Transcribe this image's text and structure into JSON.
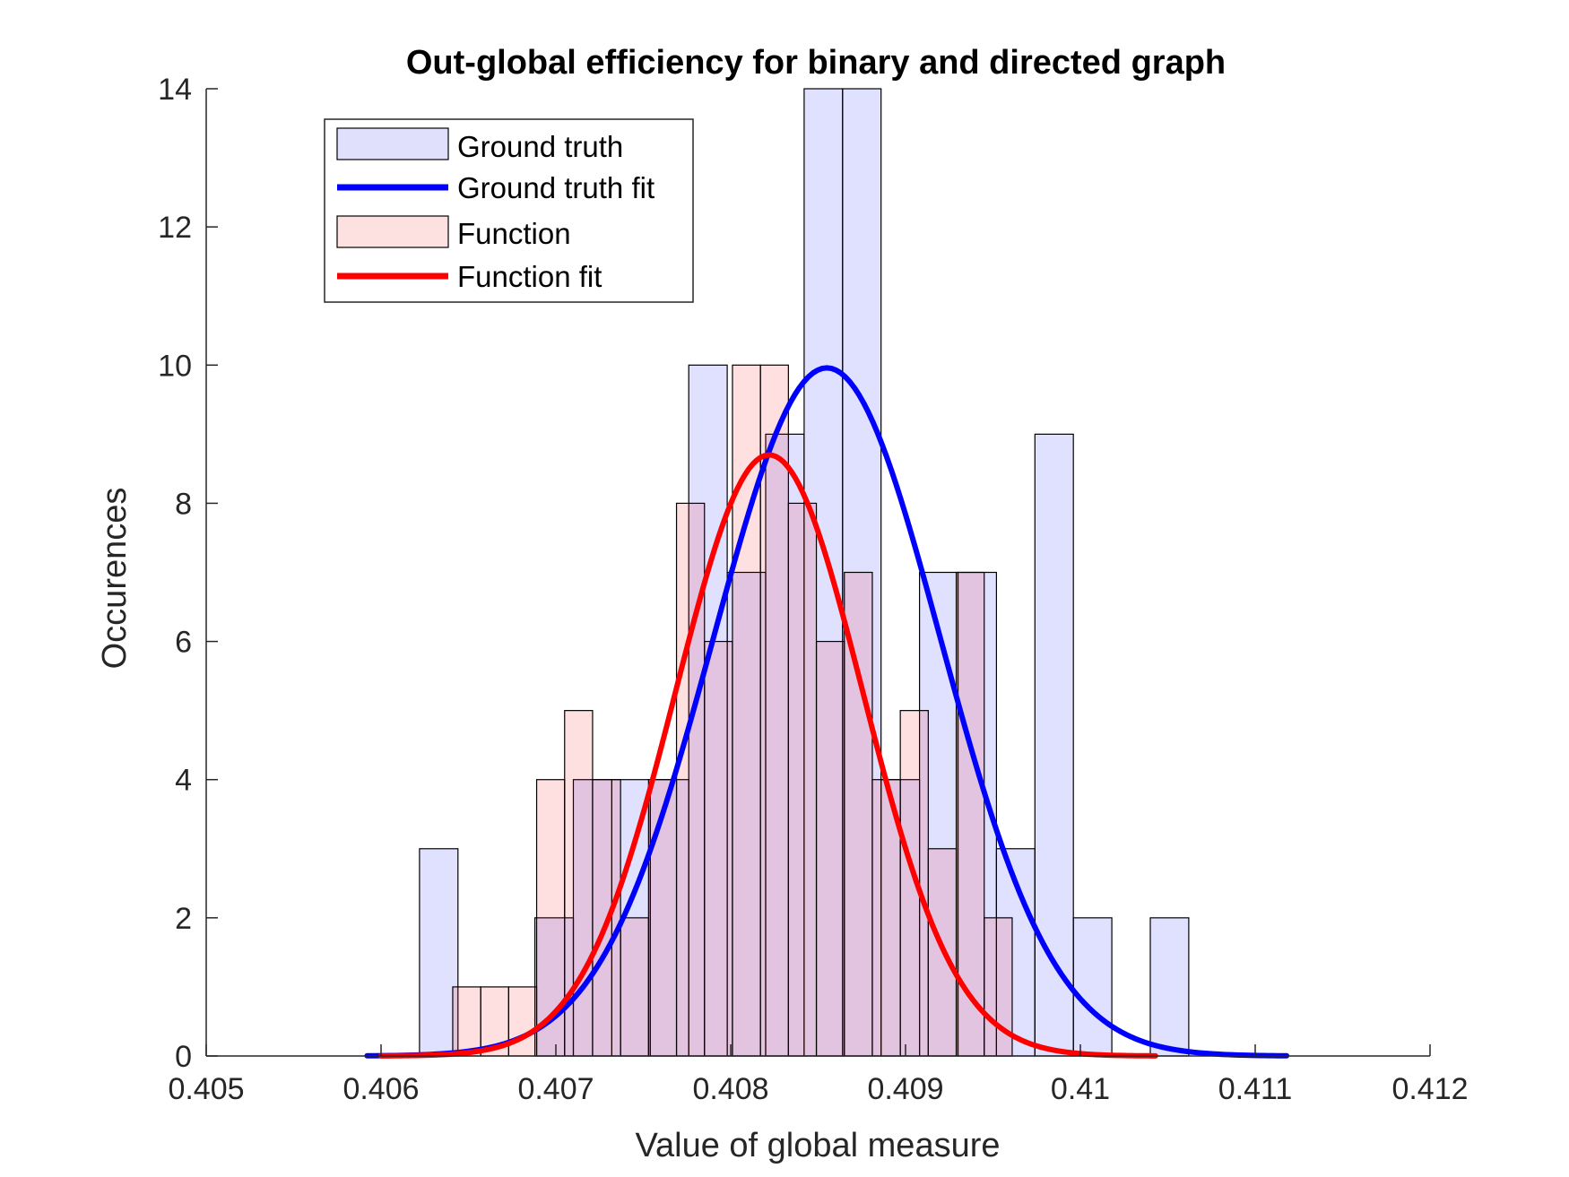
{
  "chart_data": {
    "type": "bar",
    "title": "Out-global efficiency for binary and directed graph",
    "xlabel": "Value of global measure",
    "ylabel": "Occurences",
    "xlim": [
      0.405,
      0.412
    ],
    "ylim": [
      0,
      14
    ],
    "xticks": [
      "0.405",
      "0.406",
      "0.407",
      "0.408",
      "0.409",
      "0.41",
      "0.411",
      "0.412"
    ],
    "yticks": [
      "0",
      "2",
      "4",
      "6",
      "8",
      "10",
      "12",
      "14"
    ],
    "grid": false,
    "legend_position": "top-left",
    "series": [
      {
        "name": "Ground truth",
        "kind": "histogram",
        "color": "#0000ff",
        "opacity": 0.12,
        "bin_width": 0.00022,
        "bin_starts": [
          0.40622,
          0.40644,
          0.40666,
          0.40688,
          0.4071,
          0.40732,
          0.40754,
          0.40776,
          0.40798,
          0.4082,
          0.40842,
          0.40864,
          0.40886,
          0.40908,
          0.4093,
          0.40952,
          0.40974,
          0.40996,
          0.41018,
          0.4104
        ],
        "counts": [
          3,
          0,
          0,
          2,
          4,
          4,
          4,
          10,
          7,
          9,
          14,
          14,
          4,
          7,
          7,
          3,
          9,
          2,
          0,
          2
        ]
      },
      {
        "name": "Ground truth fit",
        "kind": "normal_fit",
        "color": "#0000ff",
        "mean": 0.40855,
        "sd": 0.00065,
        "peak": 9.96,
        "x_range": [
          0.40592,
          0.41118
        ]
      },
      {
        "name": "Function",
        "kind": "histogram",
        "color": "#ff0000",
        "opacity": 0.12,
        "bin_width": 0.00016,
        "bin_starts": [
          0.40641,
          0.40657,
          0.40673,
          0.40689,
          0.40705,
          0.40721,
          0.40737,
          0.40753,
          0.40769,
          0.40785,
          0.40801,
          0.40817,
          0.40833,
          0.40849,
          0.40865,
          0.40881,
          0.40897,
          0.40913,
          0.40929,
          0.40945
        ],
        "counts": [
          1,
          1,
          1,
          4,
          5,
          4,
          2,
          4,
          8,
          6,
          10,
          10,
          8,
          6,
          7,
          4,
          5,
          3,
          7,
          2
        ]
      },
      {
        "name": "Function fit",
        "kind": "normal_fit",
        "color": "#ff0000",
        "mean": 0.40822,
        "sd": 0.000535,
        "peak": 8.7,
        "x_range": [
          0.406,
          0.41043
        ]
      }
    ]
  }
}
